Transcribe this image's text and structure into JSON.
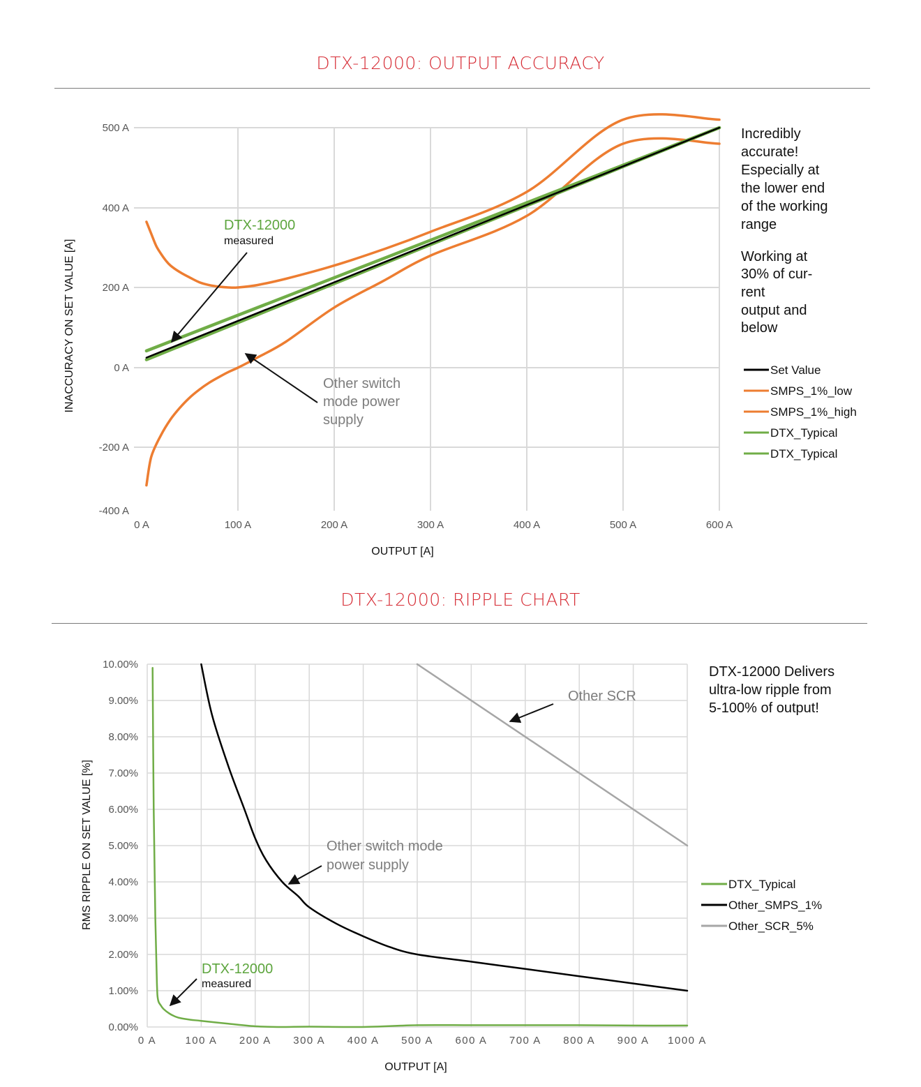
{
  "chart_data": [
    {
      "type": "line",
      "title": "DTX-12000: OUTPUT ACCURACY",
      "xlabel": "OUTPUT [A]",
      "ylabel": "INACCURACY ON SET VALUE [A]",
      "xlim": [
        0,
        600
      ],
      "ylim": [
        -400,
        500
      ],
      "x_ticks": [
        "0 A",
        "100 A",
        "200 A",
        "300 A",
        "400 A",
        "500 A",
        "600 A"
      ],
      "y_ticks": [
        "500 A",
        "400 A",
        "200 A",
        "0 A",
        "-200 A",
        "-400 A"
      ],
      "grid": true,
      "legend_position": "right",
      "series": [
        {
          "name": "Set Value",
          "color": "#000000",
          "x": [
            5,
            600
          ],
          "y": [
            25,
            500
          ]
        },
        {
          "name": "SMPS_1%_low",
          "color": "#ed7d31",
          "x": [
            5,
            10,
            20,
            30,
            40,
            50,
            60,
            70,
            80,
            90,
            100,
            120,
            150,
            200,
            250,
            300,
            400,
            500,
            600
          ],
          "y": [
            -320,
            -230,
            -170,
            -130,
            -100,
            -75,
            -55,
            -38,
            -24,
            -11,
            0,
            25,
            65,
            150,
            215,
            280,
            380,
            480,
            480
          ]
        },
        {
          "name": "SMPS_1%_high",
          "color": "#ed7d31",
          "x": [
            5,
            10,
            15,
            20,
            25,
            30,
            40,
            50,
            60,
            70,
            80,
            90,
            100,
            120,
            150,
            200,
            250,
            300,
            400,
            500,
            600
          ],
          "y": [
            365,
            335,
            305,
            285,
            268,
            255,
            238,
            225,
            213,
            206,
            202,
            200,
            200,
            206,
            222,
            255,
            295,
            340,
            420,
            510,
            510
          ]
        },
        {
          "name": "DTX_Typical",
          "color": "#70ad47",
          "x": [
            5,
            600
          ],
          "y": [
            20,
            500
          ]
        },
        {
          "name": "DTX_Typical",
          "color": "#70ad47",
          "x": [
            5,
            600
          ],
          "y": [
            42,
            500
          ]
        }
      ],
      "annotations": {
        "dtx_label": "DTX-12000",
        "dtx_sub": "measured",
        "other_lines": [
          "Other switch",
          "mode power",
          "supply"
        ],
        "note_lines": [
          "Incredibly",
          "accurate!",
          "Especially at",
          "the lower end",
          "of the working",
          "range"
        ],
        "note2_lines": [
          "Working at",
          "30% of cur-",
          "rent",
          "output and",
          "below"
        ]
      }
    },
    {
      "type": "line",
      "title": "DTX-12000: RIPPLE CHART",
      "xlabel": "OUTPUT [A]",
      "ylabel": "RMS RIPPLE ON SET VALUE [%]",
      "xlim": [
        0,
        1000
      ],
      "ylim": [
        0,
        10
      ],
      "x_ticks": [
        "0 A",
        "100 A",
        "200 A",
        "300 A",
        "400 A",
        "500 A",
        "600 A",
        "700 A",
        "800 A",
        "900 A",
        "1000 A"
      ],
      "y_ticks": [
        "10.00%",
        "9.00%",
        "8.00%",
        "7.00%",
        "6.00%",
        "5.00%",
        "4.00%",
        "3.00%",
        "2.00%",
        "1.00%",
        "0.00%"
      ],
      "grid": true,
      "legend_position": "right",
      "series": [
        {
          "name": "DTX_Typical",
          "color": "#70ad47",
          "x": [
            10,
            12,
            15,
            18,
            20,
            25,
            30,
            40,
            50,
            60,
            80,
            100,
            150,
            200,
            250,
            300,
            400,
            500,
            600,
            700,
            800,
            900,
            1000
          ],
          "y": [
            9.9,
            6.0,
            3.0,
            1.2,
            0.75,
            0.6,
            0.5,
            0.38,
            0.3,
            0.25,
            0.2,
            0.17,
            0.09,
            0.02,
            0.0,
            0.01,
            0.0,
            0.05,
            0.05,
            0.05,
            0.05,
            0.04,
            0.04
          ]
        },
        {
          "name": "Other_SMPS_1%",
          "color": "#000000",
          "x": [
            100,
            120,
            150,
            180,
            200,
            220,
            250,
            280,
            300,
            350,
            400,
            450,
            500,
            600,
            700,
            800,
            900,
            1000
          ],
          "y": [
            10.0,
            8.6,
            7.2,
            6.0,
            5.2,
            4.6,
            4.0,
            3.6,
            3.3,
            2.85,
            2.5,
            2.2,
            2.0,
            1.8,
            1.6,
            1.4,
            1.2,
            1.0
          ]
        },
        {
          "name": "Other_SCR_5%",
          "color": "#a6a6a6",
          "x": [
            500,
            1000
          ],
          "y": [
            10.0,
            5.0
          ]
        }
      ],
      "annotations": {
        "scr_label": "Other SCR",
        "smps_lines": [
          "Other switch mode",
          "power supply"
        ],
        "dtx_label": "DTX-12000",
        "dtx_sub": "measured",
        "note_lines": [
          "DTX-12000 Delivers",
          "ultra-low ripple from",
          "5-100% of output!"
        ]
      }
    }
  ]
}
